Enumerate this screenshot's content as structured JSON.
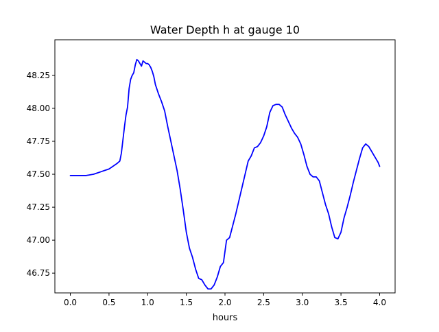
{
  "chart_data": {
    "type": "line",
    "title": "Water Depth h at gauge 10",
    "xlabel": "hours",
    "ylabel": "",
    "xlim": [
      -0.2,
      4.2
    ],
    "ylim": [
      46.6,
      48.52
    ],
    "xticks": [
      0.0,
      0.5,
      1.0,
      1.5,
      2.0,
      2.5,
      3.0,
      3.5,
      4.0
    ],
    "xtick_labels": [
      "0.0",
      "0.5",
      "1.0",
      "1.5",
      "2.0",
      "2.5",
      "3.0",
      "3.5",
      "4.0"
    ],
    "yticks": [
      46.75,
      47.0,
      47.25,
      47.5,
      47.75,
      48.0,
      48.25
    ],
    "ytick_labels": [
      "46.75",
      "47.00",
      "47.25",
      "47.50",
      "47.75",
      "48.00",
      "48.25"
    ],
    "grid": false,
    "series": [
      {
        "color": "#0000ff",
        "x": [
          0.0,
          0.1,
          0.2,
          0.3,
          0.35,
          0.4,
          0.45,
          0.5,
          0.55,
          0.6,
          0.64,
          0.66,
          0.68,
          0.7,
          0.72,
          0.74,
          0.76,
          0.78,
          0.8,
          0.82,
          0.84,
          0.86,
          0.88,
          0.9,
          0.92,
          0.94,
          0.96,
          0.98,
          1.0,
          1.02,
          1.04,
          1.06,
          1.08,
          1.1,
          1.14,
          1.18,
          1.22,
          1.26,
          1.3,
          1.34,
          1.38,
          1.42,
          1.46,
          1.5,
          1.54,
          1.58,
          1.62,
          1.66,
          1.7,
          1.74,
          1.78,
          1.82,
          1.86,
          1.9,
          1.94,
          1.98,
          2.02,
          2.06,
          2.1,
          2.14,
          2.18,
          2.22,
          2.26,
          2.3,
          2.34,
          2.38,
          2.42,
          2.46,
          2.5,
          2.54,
          2.58,
          2.62,
          2.66,
          2.7,
          2.74,
          2.78,
          2.82,
          2.86,
          2.9,
          2.94,
          2.98,
          3.02,
          3.06,
          3.1,
          3.14,
          3.18,
          3.22,
          3.26,
          3.3,
          3.34,
          3.38,
          3.42,
          3.46,
          3.5,
          3.54,
          3.58,
          3.62,
          3.66,
          3.7,
          3.74,
          3.78,
          3.82,
          3.86,
          3.9,
          3.94,
          3.98,
          4.0
        ],
        "y": [
          47.49,
          47.49,
          47.49,
          47.5,
          47.51,
          47.52,
          47.53,
          47.54,
          47.56,
          47.58,
          47.6,
          47.66,
          47.76,
          47.86,
          47.95,
          48.01,
          48.15,
          48.22,
          48.25,
          48.27,
          48.33,
          48.37,
          48.36,
          48.34,
          48.32,
          48.36,
          48.35,
          48.34,
          48.34,
          48.33,
          48.31,
          48.28,
          48.24,
          48.18,
          48.11,
          48.05,
          47.98,
          47.86,
          47.75,
          47.64,
          47.53,
          47.39,
          47.23,
          47.06,
          46.94,
          46.87,
          46.78,
          46.71,
          46.7,
          46.66,
          46.63,
          46.63,
          46.66,
          46.72,
          46.8,
          46.83,
          47.0,
          47.02,
          47.11,
          47.2,
          47.3,
          47.4,
          47.5,
          47.6,
          47.64,
          47.7,
          47.71,
          47.74,
          47.79,
          47.86,
          47.97,
          48.02,
          48.03,
          48.03,
          48.01,
          47.95,
          47.9,
          47.85,
          47.81,
          47.78,
          47.73,
          47.65,
          47.56,
          47.5,
          47.48,
          47.48,
          47.45,
          47.36,
          47.27,
          47.2,
          47.1,
          47.02,
          47.01,
          47.06,
          47.17,
          47.25,
          47.34,
          47.44,
          47.53,
          47.62,
          47.7,
          47.73,
          47.71,
          47.67,
          47.63,
          47.59,
          47.56
        ]
      }
    ]
  }
}
